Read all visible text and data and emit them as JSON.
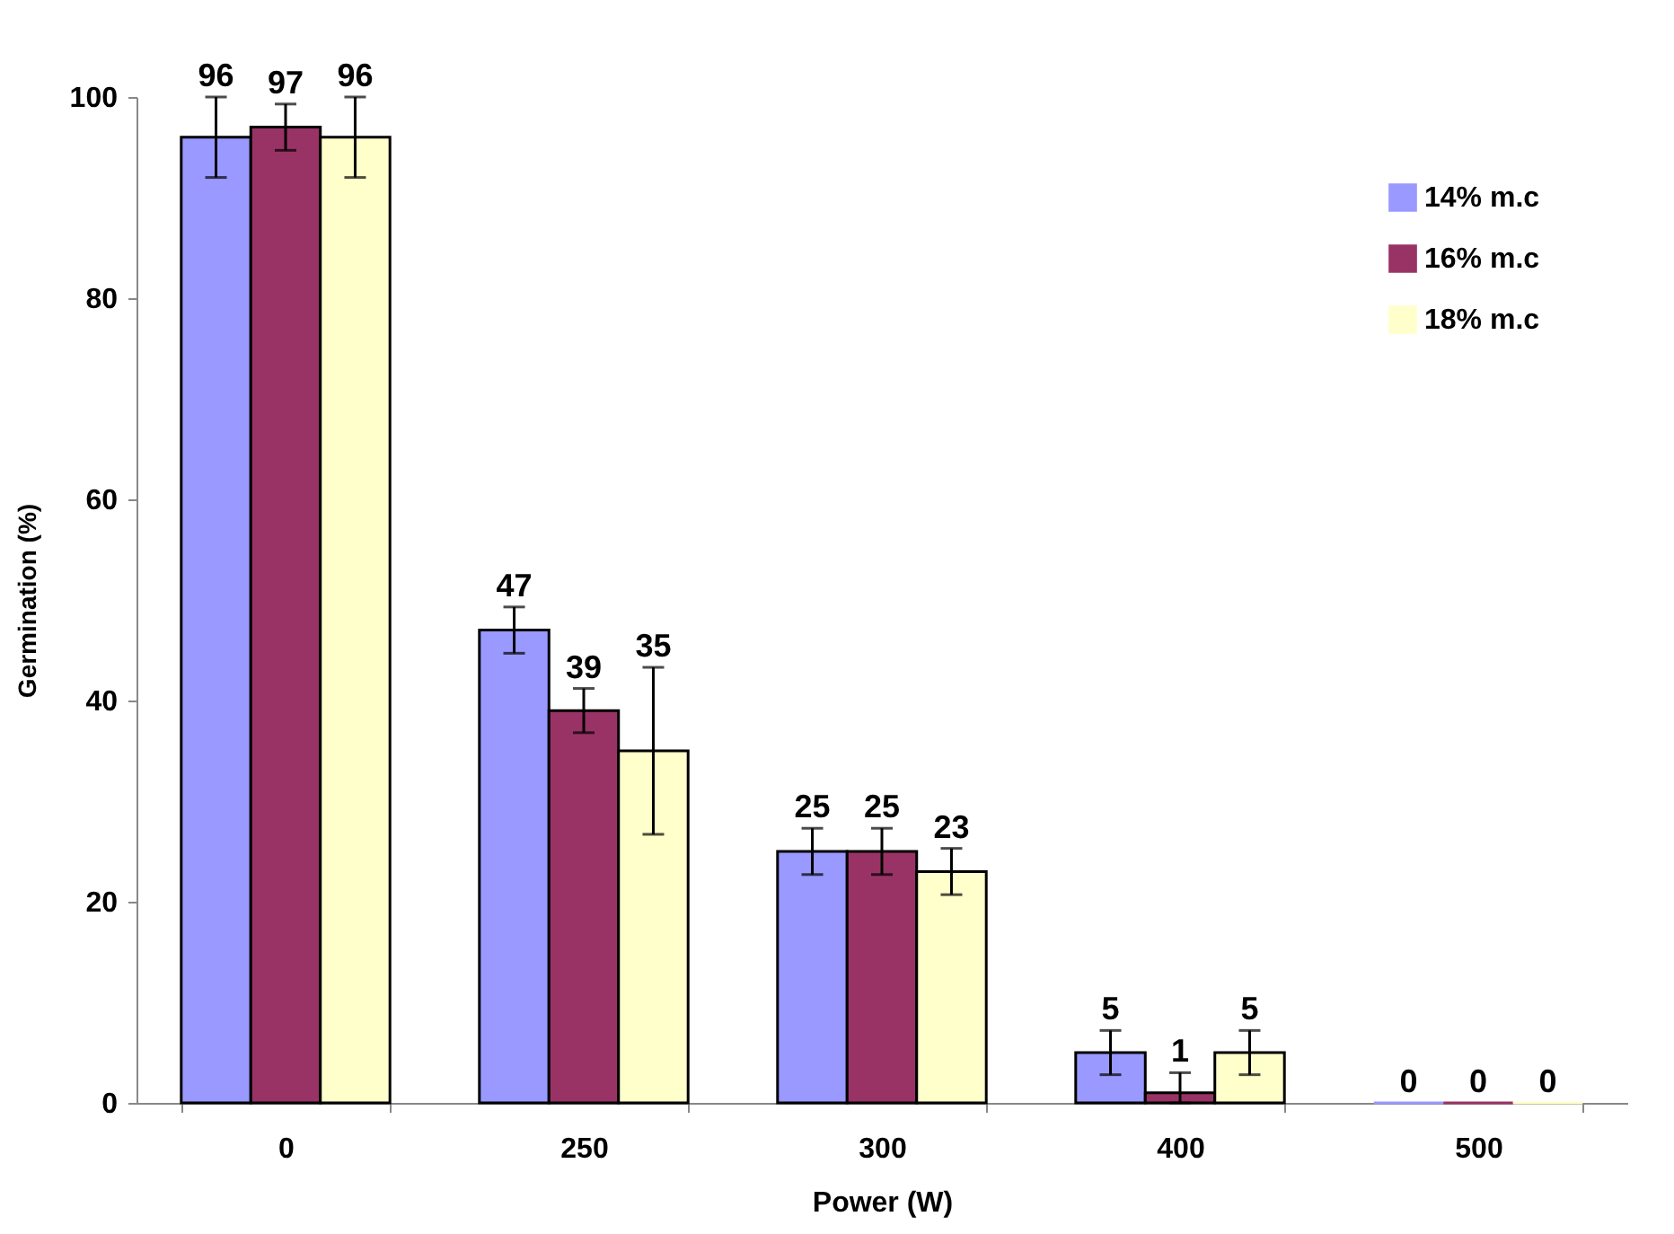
{
  "chart_data": {
    "type": "bar",
    "xlabel": "Power (W)",
    "ylabel": "Germination (%)",
    "categories": [
      "0",
      "250",
      "300",
      "400",
      "500"
    ],
    "series": [
      {
        "name": "14% m.c",
        "color": "#9999ff",
        "values": [
          96,
          47,
          25,
          5,
          0
        ],
        "errors": [
          4,
          2.3,
          2.3,
          2.2,
          null
        ]
      },
      {
        "name": "16% m.c",
        "color": "#993366",
        "values": [
          97,
          39,
          25,
          1,
          0
        ],
        "errors": [
          2.3,
          2.2,
          2.3,
          [
            0,
            3
          ],
          null
        ]
      },
      {
        "name": "18% m.c",
        "color": "#ffffcc",
        "values": [
          96,
          35,
          23,
          5,
          0
        ],
        "errors": [
          4,
          8.3,
          2.3,
          2.2,
          null
        ]
      }
    ],
    "ylim": [
      0,
      100
    ],
    "yticks": [
      0,
      20,
      40,
      60,
      80,
      100
    ],
    "grid": false,
    "legend": "top right",
    "data_labels": true
  }
}
